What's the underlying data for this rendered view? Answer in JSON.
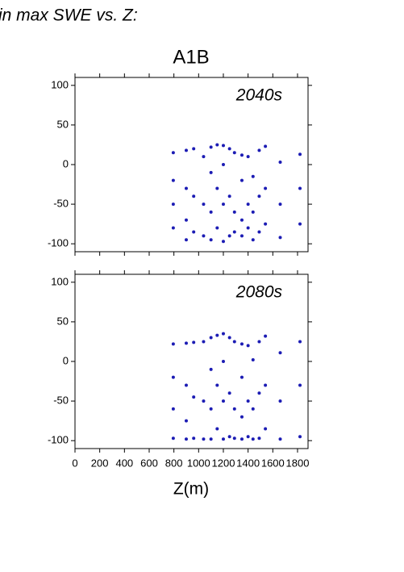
{
  "header": {
    "text": "in max SWE vs. Z:"
  },
  "title": "A1B",
  "xlabel": "Z(m)",
  "chart_data": [
    {
      "type": "scatter",
      "annotation": "2040s",
      "color": "#1c1cb4",
      "xlim": [
        0,
        1885
      ],
      "ylim": [
        -110,
        110
      ],
      "xticks": [
        0,
        200,
        400,
        600,
        800,
        1000,
        1200,
        1400,
        1600,
        1800
      ],
      "yticks": [
        -100,
        -50,
        0,
        50,
        100
      ],
      "x": [
        795,
        795,
        795,
        795,
        900,
        900,
        900,
        900,
        960,
        960,
        960,
        1040,
        1040,
        1040,
        1100,
        1100,
        1100,
        1100,
        1150,
        1150,
        1150,
        1200,
        1200,
        1200,
        1200,
        1250,
        1250,
        1250,
        1290,
        1290,
        1290,
        1350,
        1350,
        1350,
        1350,
        1400,
        1400,
        1400,
        1440,
        1440,
        1440,
        1490,
        1490,
        1490,
        1540,
        1540,
        1540,
        1660,
        1660,
        1660,
        1820,
        1820,
        1820
      ],
      "values": [
        15,
        -20,
        -50,
        -80,
        18,
        -30,
        -70,
        -95,
        20,
        -40,
        -85,
        10,
        -50,
        -90,
        22,
        -10,
        -60,
        -95,
        25,
        -30,
        -80,
        24,
        0,
        -50,
        -97,
        20,
        -40,
        -90,
        15,
        -60,
        -85,
        12,
        -20,
        -70,
        -90,
        10,
        -50,
        -80,
        -15,
        -60,
        -95,
        18,
        -40,
        -85,
        23,
        -30,
        -75,
        3,
        -50,
        -92,
        13,
        -30,
        -75
      ]
    },
    {
      "type": "scatter",
      "annotation": "2080s",
      "color": "#1c1cb4",
      "xlim": [
        0,
        1885
      ],
      "ylim": [
        -110,
        110
      ],
      "xticks": [
        0,
        200,
        400,
        600,
        800,
        1000,
        1200,
        1400,
        1600,
        1800
      ],
      "yticks": [
        -100,
        -50,
        0,
        50,
        100
      ],
      "x": [
        795,
        795,
        795,
        795,
        900,
        900,
        900,
        900,
        960,
        960,
        960,
        1040,
        1040,
        1040,
        1100,
        1100,
        1100,
        1100,
        1150,
        1150,
        1150,
        1200,
        1200,
        1200,
        1200,
        1250,
        1250,
        1250,
        1290,
        1290,
        1290,
        1350,
        1350,
        1350,
        1350,
        1400,
        1400,
        1400,
        1440,
        1440,
        1440,
        1490,
        1490,
        1490,
        1540,
        1540,
        1540,
        1660,
        1660,
        1660,
        1820,
        1820,
        1820
      ],
      "values": [
        22,
        -20,
        -60,
        -97,
        23,
        -30,
        -75,
        -98,
        24,
        -45,
        -97,
        25,
        -50,
        -98,
        30,
        -10,
        -60,
        -98,
        33,
        -30,
        -85,
        35,
        0,
        -50,
        -98,
        30,
        -40,
        -95,
        25,
        -60,
        -97,
        22,
        -20,
        -70,
        -98,
        20,
        -50,
        -95,
        2,
        -60,
        -98,
        25,
        -40,
        -97,
        32,
        -30,
        -85,
        11,
        -50,
        -98,
        25,
        -30,
        -95
      ]
    }
  ]
}
